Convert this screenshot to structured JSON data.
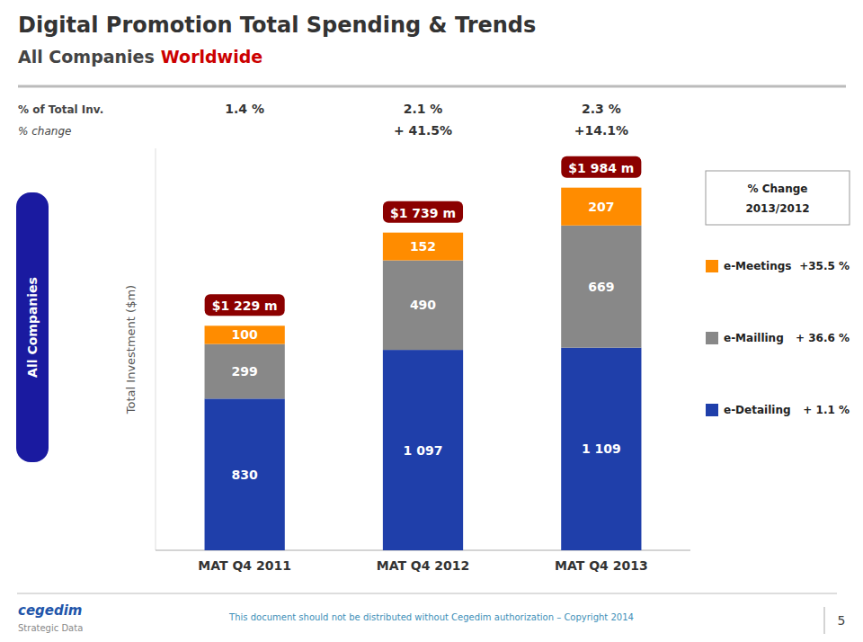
{
  "chart_data": {
    "type": "bar",
    "stacked": true,
    "title": "Digital Promotion Total Spending & Trends",
    "subtitle": "All Companies",
    "subtitle_highlight": {
      "text": "Worldwide",
      "color": "#CC0000"
    },
    "categories": [
      "MAT Q4 2011",
      "MAT Q4 2012",
      "MAT Q4 2013"
    ],
    "ylabel": "Total Investment ($m)",
    "ylim": [
      0,
      2200
    ],
    "yticks": [],
    "tick_labels": "x",
    "grid": false,
    "data_labels": true,
    "legend": "right",
    "legend_title": [
      "% Change",
      "2013/2012"
    ],
    "series": [
      {
        "name": "e-Detailing",
        "color": "#1F3FAA",
        "values": [
          830,
          1097,
          1109
        ],
        "value_labels": [
          "830",
          "1 097",
          "1 109"
        ],
        "change_label": "+ 1.1 %"
      },
      {
        "name": "e-Mailling",
        "color": "#888888",
        "values": [
          299,
          490,
          669
        ],
        "value_labels": [
          "299",
          "490",
          "669"
        ],
        "change_label": "+ 36.6 %"
      },
      {
        "name": "e-Meetings",
        "color": "#FF8C00",
        "values": [
          100,
          152,
          207
        ],
        "value_labels": [
          "100",
          "152",
          "207"
        ],
        "change_label": "+35.5 %"
      }
    ],
    "totals": {
      "color": "#8B0000",
      "values": [
        1229,
        1739,
        1984
      ],
      "value_labels": [
        "$1 229 m",
        "$1 739 m",
        "$1 984 m"
      ]
    },
    "rows": [
      {
        "label": "% of Total Inv.",
        "values": [
          1.4,
          2.1,
          2.3
        ],
        "value_labels": [
          "1.4 %",
          "2.1 %",
          "2.3 %"
        ]
      },
      {
        "label": "% change",
        "values": [
          null,
          41.5,
          14.1
        ],
        "value_labels": [
          null,
          "+ 41.5%",
          "+14.1%"
        ]
      }
    ],
    "side_label": "All Companies",
    "footer": "This document should not be distributed without Cegedim authorization – Copyright 2014",
    "page": "5",
    "logo": "cegedim",
    "logo_subtitle": "Strategic Data"
  }
}
